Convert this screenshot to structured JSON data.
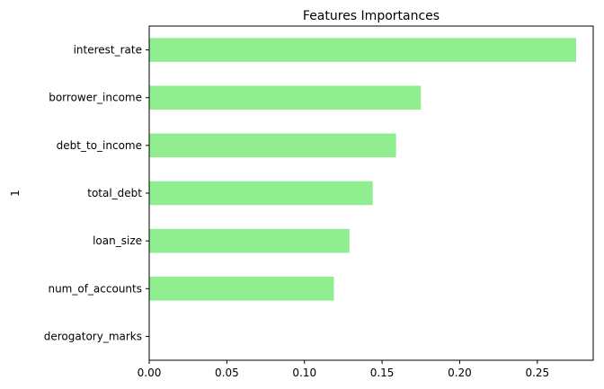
{
  "chart_data": {
    "type": "bar",
    "orientation": "horizontal",
    "title": "Features Importances",
    "xlabel": "",
    "ylabel": "1",
    "categories": [
      "interest_rate",
      "borrower_income",
      "debt_to_income",
      "total_debt",
      "loan_size",
      "num_of_accounts",
      "derogatory_marks"
    ],
    "values": [
      0.275,
      0.175,
      0.159,
      0.144,
      0.129,
      0.119,
      0.0
    ],
    "xlim": [
      0,
      0.286
    ],
    "xticks": [
      0.0,
      0.05,
      0.1,
      0.15,
      0.2,
      0.25
    ],
    "xtick_labels": [
      "0.00",
      "0.05",
      "0.10",
      "0.15",
      "0.20",
      "0.25"
    ],
    "bar_color": "#90ee90",
    "grid": false,
    "legend": false
  }
}
